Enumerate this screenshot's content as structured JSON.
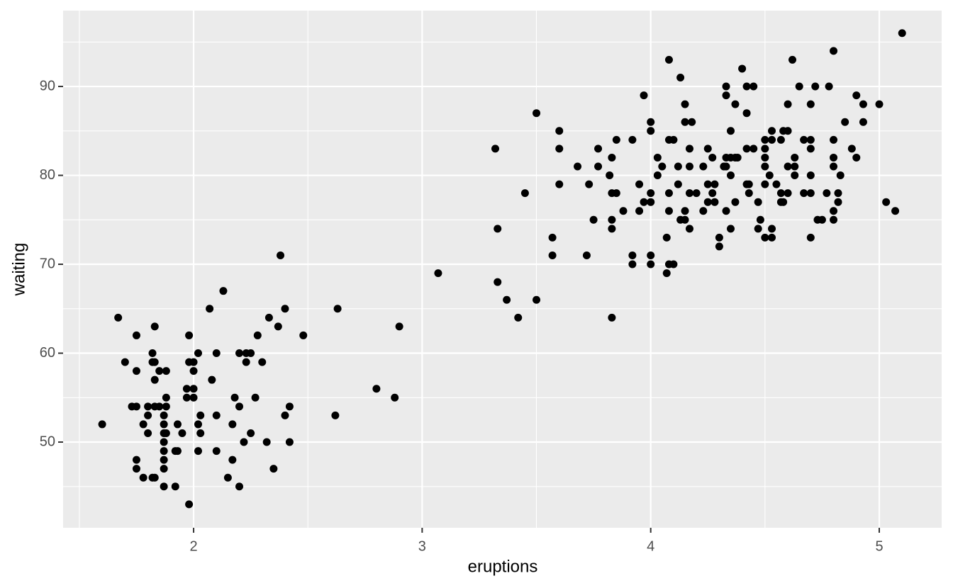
{
  "chart_data": {
    "type": "scatter",
    "x_label": "eruptions",
    "y_label": "waiting",
    "color": "#000000",
    "x": [
      1.6,
      1.67,
      1.7,
      1.73,
      1.75,
      1.75,
      1.75,
      1.75,
      1.75,
      1.78,
      1.78,
      1.8,
      1.8,
      1.8,
      1.82,
      1.82,
      1.82,
      1.83,
      1.83,
      1.83,
      1.83,
      1.83,
      1.85,
      1.85,
      1.87,
      1.87,
      1.87,
      1.87,
      1.87,
      1.87,
      1.87,
      1.87,
      1.88,
      1.88,
      1.88,
      1.88,
      1.92,
      1.92,
      1.93,
      1.93,
      1.95,
      1.97,
      1.97,
      1.98,
      1.98,
      1.98,
      2,
      2,
      2,
      2,
      2.02,
      2.02,
      2.02,
      2.03,
      2.03,
      2.07,
      2.08,
      2.1,
      2.1,
      2.1,
      2.13,
      2.15,
      2.17,
      2.17,
      2.18,
      2.2,
      2.2,
      2.2,
      2.22,
      2.23,
      2.23,
      2.25,
      2.25,
      2.27,
      2.28,
      2.3,
      2.32,
      2.33,
      2.35,
      2.37,
      2.38,
      2.4,
      2.4,
      2.42,
      2.42,
      2.48,
      2.62,
      2.63,
      2.8,
      2.88,
      2.9,
      3.07,
      3.32,
      3.33,
      3.33,
      3.37,
      3.42,
      3.45,
      3.5,
      3.5,
      3.57,
      3.57,
      3.6,
      3.6,
      3.6,
      3.68,
      3.72,
      3.73,
      3.75,
      3.77,
      3.77,
      3.82,
      3.83,
      3.83,
      3.83,
      3.83,
      3.83,
      3.85,
      3.85,
      3.88,
      3.92,
      3.92,
      3.92,
      3.95,
      3.95,
      3.97,
      3.97,
      4,
      4,
      4,
      4,
      4,
      4,
      4.03,
      4.03,
      4.05,
      4.07,
      4.07,
      4.08,
      4.08,
      4.08,
      4.08,
      4.08,
      4.1,
      4.1,
      4.12,
      4.12,
      4.13,
      4.13,
      4.15,
      4.15,
      4.15,
      4.15,
      4.17,
      4.17,
      4.17,
      4.17,
      4.18,
      4.2,
      4.23,
      4.23,
      4.25,
      4.25,
      4.25,
      4.27,
      4.27,
      4.28,
      4.28,
      4.3,
      4.3,
      4.32,
      4.33,
      4.33,
      4.33,
      4.33,
      4.33,
      4.35,
      4.35,
      4.35,
      4.35,
      4.37,
      4.37,
      4.37,
      4.38,
      4.4,
      4.42,
      4.42,
      4.42,
      4.42,
      4.43,
      4.43,
      4.45,
      4.45,
      4.47,
      4.47,
      4.48,
      4.5,
      4.5,
      4.5,
      4.5,
      4.5,
      4.5,
      4.52,
      4.53,
      4.53,
      4.53,
      4.53,
      4.55,
      4.57,
      4.57,
      4.57,
      4.58,
      4.58,
      4.6,
      4.6,
      4.6,
      4.6,
      4.62,
      4.63,
      4.63,
      4.63,
      4.65,
      4.67,
      4.67,
      4.7,
      4.7,
      4.7,
      4.7,
      4.7,
      4.7,
      4.72,
      4.73,
      4.75,
      4.77,
      4.78,
      4.8,
      4.8,
      4.8,
      4.8,
      4.8,
      4.8,
      4.82,
      4.82,
      4.83,
      4.85,
      4.88,
      4.9,
      4.9,
      4.93,
      4.93,
      5,
      5.03,
      5.07,
      5.1
    ],
    "values": [
      52,
      64,
      59,
      54,
      54,
      62,
      58,
      48,
      47,
      52,
      46,
      53,
      51,
      54,
      60,
      59,
      46,
      63,
      59,
      57,
      54,
      46,
      58,
      54,
      53,
      52,
      51,
      50,
      49,
      48,
      47,
      45,
      58,
      55,
      54,
      51,
      49,
      45,
      52,
      49,
      51,
      56,
      55,
      62,
      59,
      43,
      59,
      58,
      56,
      55,
      60,
      52,
      49,
      53,
      51,
      65,
      57,
      60,
      53,
      49,
      67,
      46,
      52,
      48,
      55,
      60,
      54,
      45,
      50,
      59,
      60,
      60,
      51,
      55,
      62,
      59,
      50,
      64,
      47,
      63,
      71,
      65,
      53,
      54,
      50,
      62,
      53,
      65,
      56,
      55,
      63,
      69,
      83,
      74,
      68,
      66,
      64,
      78,
      87,
      66,
      73,
      71,
      85,
      83,
      79,
      81,
      71,
      79,
      75,
      83,
      81,
      80,
      82,
      78,
      75,
      74,
      64,
      84,
      78,
      76,
      84,
      71,
      70,
      79,
      76,
      89,
      77,
      86,
      85,
      78,
      77,
      71,
      70,
      80,
      82,
      81,
      69,
      73,
      93,
      84,
      78,
      76,
      70,
      84,
      70,
      81,
      79,
      91,
      75,
      88,
      86,
      76,
      75,
      81,
      83,
      78,
      74,
      86,
      78,
      81,
      76,
      83,
      79,
      77,
      82,
      78,
      79,
      77,
      73,
      72,
      81,
      90,
      89,
      82,
      81,
      76,
      85,
      82,
      80,
      74,
      88,
      82,
      77,
      82,
      92,
      87,
      83,
      79,
      90,
      79,
      78,
      90,
      83,
      77,
      74,
      75,
      84,
      83,
      82,
      81,
      79,
      73,
      80,
      85,
      84,
      74,
      73,
      79,
      78,
      77,
      84,
      85,
      77,
      88,
      85,
      81,
      78,
      93,
      82,
      81,
      80,
      90,
      84,
      78,
      88,
      84,
      83,
      80,
      78,
      73,
      90,
      75,
      75,
      78,
      90,
      94,
      84,
      82,
      81,
      76,
      75,
      78,
      77,
      80,
      86,
      83,
      89,
      82,
      88,
      86,
      88,
      77,
      76,
      96
    ],
    "xlim": [
      1.429,
      5.273
    ],
    "ylim": [
      40.36,
      98.53
    ],
    "xticks": [
      2,
      3,
      4,
      5
    ],
    "yticks": [
      50,
      60,
      70,
      80,
      90
    ],
    "x_minor_grid": [
      1.5,
      2.5,
      3.5,
      4.5
    ],
    "y_minor_grid": [
      45,
      55,
      65,
      75,
      85,
      95
    ],
    "grid": true,
    "panel_color": "#ebebeb"
  }
}
